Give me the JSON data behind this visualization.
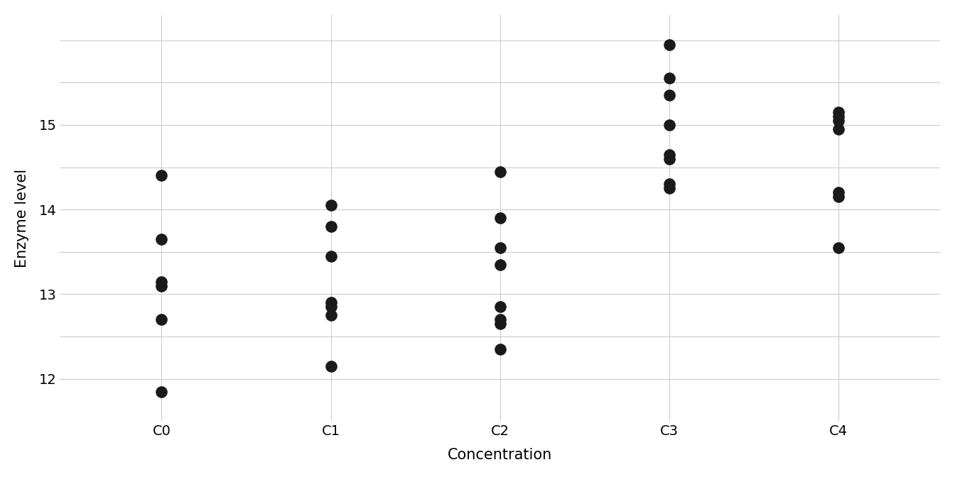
{
  "categories": [
    "C0",
    "C1",
    "C2",
    "C3",
    "C4"
  ],
  "data": {
    "C0": [
      11.85,
      12.7,
      13.1,
      13.15,
      13.65,
      14.4
    ],
    "C1": [
      12.15,
      12.75,
      12.85,
      12.9,
      13.45,
      13.8,
      14.05
    ],
    "C2": [
      12.35,
      12.65,
      12.7,
      12.85,
      13.35,
      13.55,
      13.9,
      14.45
    ],
    "C3": [
      14.25,
      14.3,
      14.6,
      14.65,
      15.0,
      15.35,
      15.55,
      15.95
    ],
    "C4": [
      13.55,
      14.15,
      14.2,
      14.95,
      15.05,
      15.1,
      15.15
    ]
  },
  "xlabel": "Concentration",
  "ylabel": "Enzyme level",
  "ylim": [
    11.5,
    16.3
  ],
  "yticks_major": [
    12,
    13,
    14,
    15
  ],
  "yticks_minor": [
    11.5,
    12.0,
    12.5,
    13.0,
    13.5,
    14.0,
    14.5,
    15.0,
    15.5,
    16.0,
    16.5
  ],
  "background_color": "#ffffff",
  "grid_color": "#cccccc",
  "dot_color": "#1a1a1a",
  "dot_size": 120,
  "label_fontsize": 15,
  "tick_fontsize": 14
}
